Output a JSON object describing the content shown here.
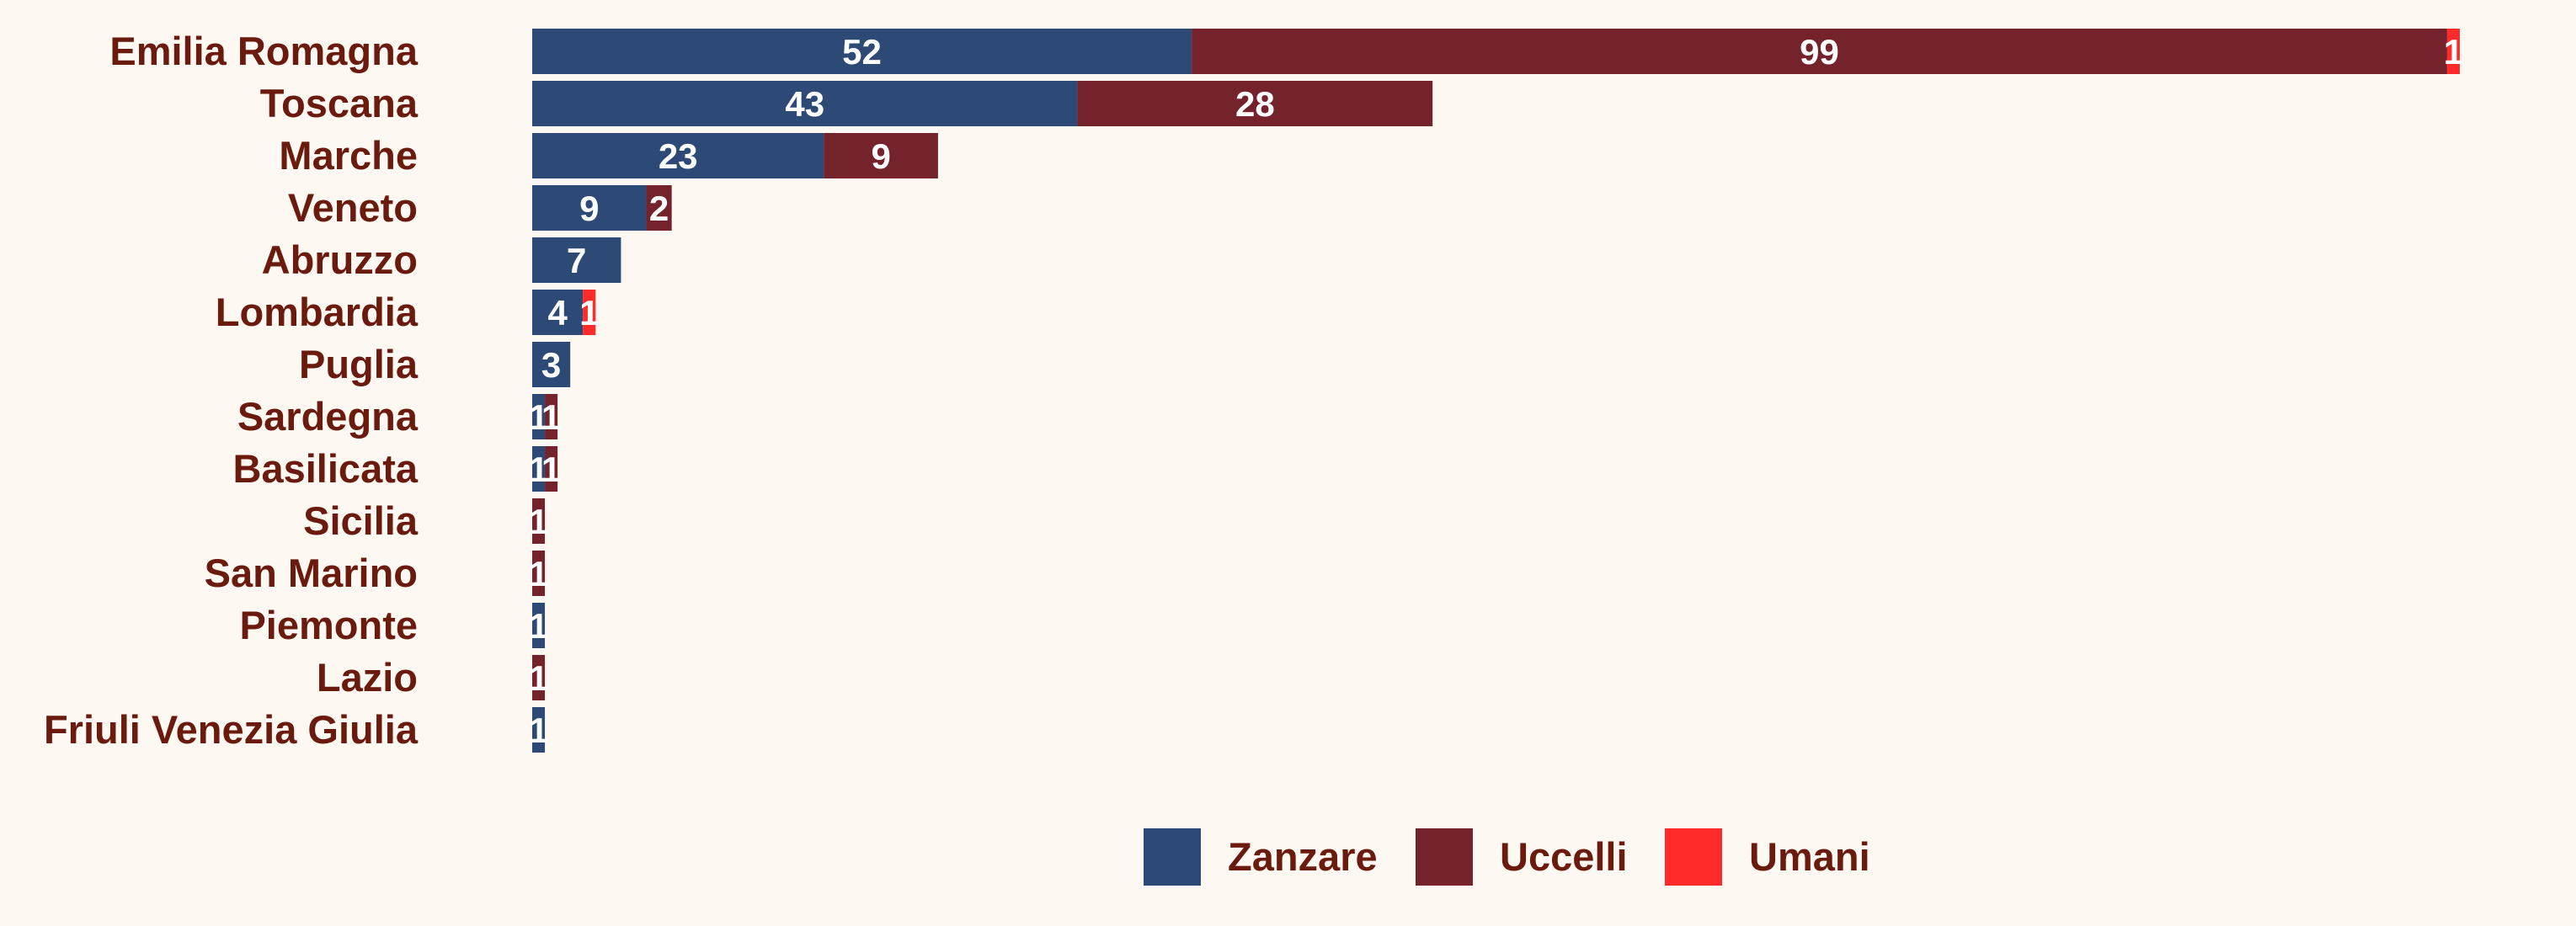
{
  "chart_data": {
    "type": "bar",
    "orientation": "horizontal",
    "stacked": true,
    "categories": [
      "Emilia Romagna",
      "Toscana",
      "Marche",
      "Veneto",
      "Abruzzo",
      "Lombardia",
      "Puglia",
      "Sardegna",
      "Basilicata",
      "Sicilia",
      "San Marino",
      "Piemonte",
      "Lazio",
      "Friuli Venezia Giulia"
    ],
    "series": [
      {
        "name": "Zanzare",
        "color": "#2c4a75",
        "values": [
          52,
          43,
          23,
          9,
          7,
          4,
          3,
          1,
          1,
          0,
          0,
          1,
          0,
          1
        ]
      },
      {
        "name": "Uccelli",
        "color": "#74222b",
        "values": [
          99,
          28,
          9,
          2,
          0,
          0,
          0,
          1,
          1,
          1,
          1,
          0,
          1,
          0
        ]
      },
      {
        "name": "Umani",
        "color": "#ff2a2a",
        "values": [
          1,
          0,
          0,
          0,
          0,
          1,
          0,
          0,
          0,
          0,
          0,
          0,
          0,
          0
        ]
      }
    ],
    "xlim": [
      0,
      152
    ],
    "grid": false,
    "legend_position": "bottom",
    "title": "",
    "xlabel": "",
    "ylabel": ""
  }
}
